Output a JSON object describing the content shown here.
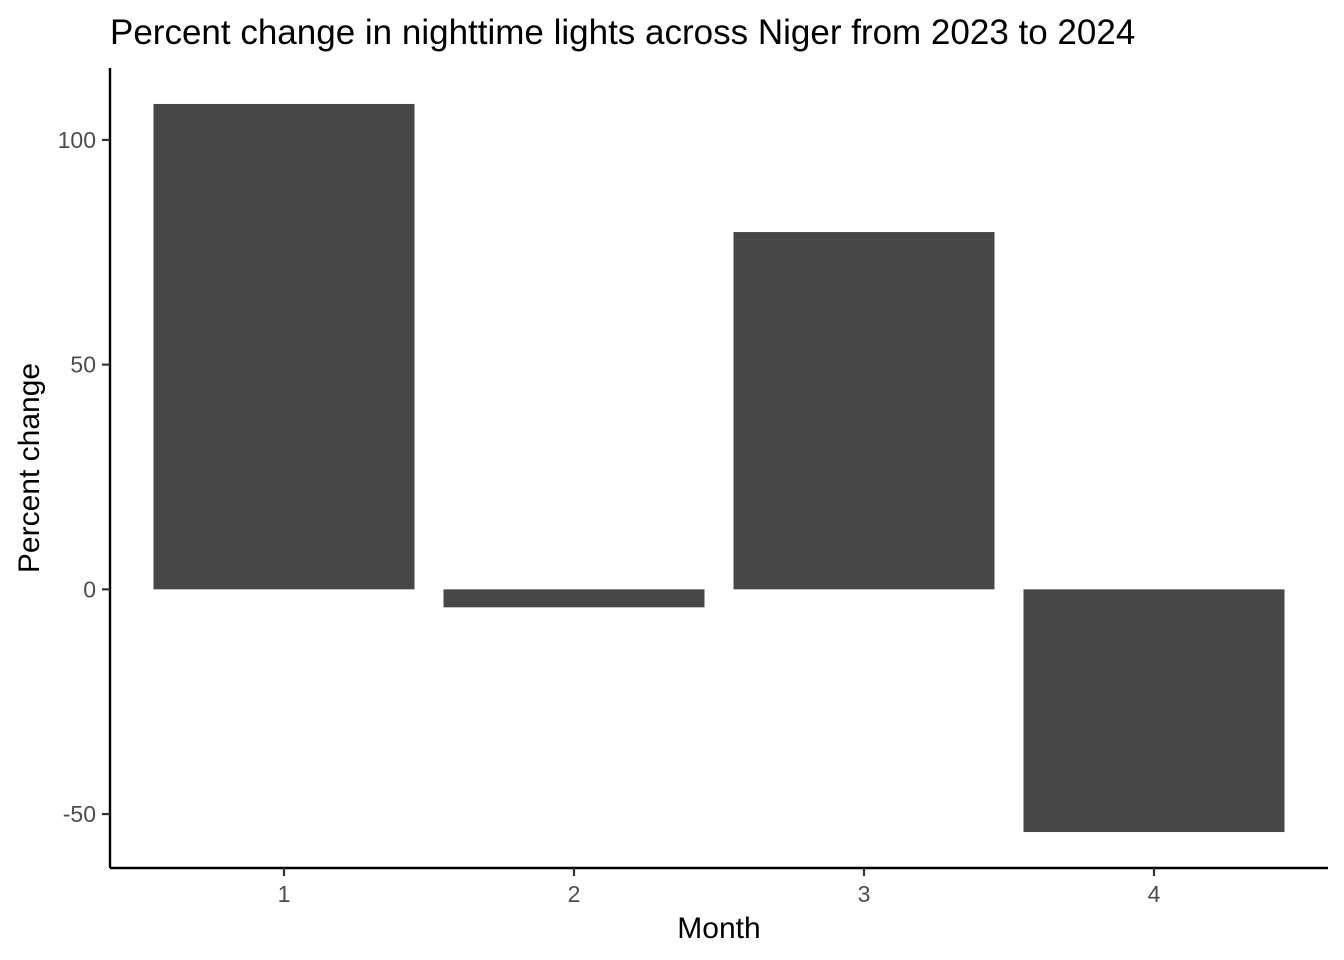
{
  "colors": {
    "bar_fill": "#474747",
    "axis": "#000000",
    "tick_label": "#4d4d4d",
    "background": "#ffffff"
  },
  "chart_data": {
    "type": "bar",
    "title": "Percent change in nighttime lights across Niger from 2023 to 2024",
    "xlabel": "Month",
    "ylabel": "Percent change",
    "categories": [
      "1",
      "2",
      "3",
      "4"
    ],
    "values": [
      108,
      -4,
      79.5,
      -54
    ],
    "ylim": [
      -62,
      116
    ],
    "yticks": [
      -50,
      0,
      50,
      100
    ],
    "ytick_labels": [
      "-50",
      "0",
      "50",
      "100"
    ],
    "grid": false,
    "legend": "none"
  }
}
